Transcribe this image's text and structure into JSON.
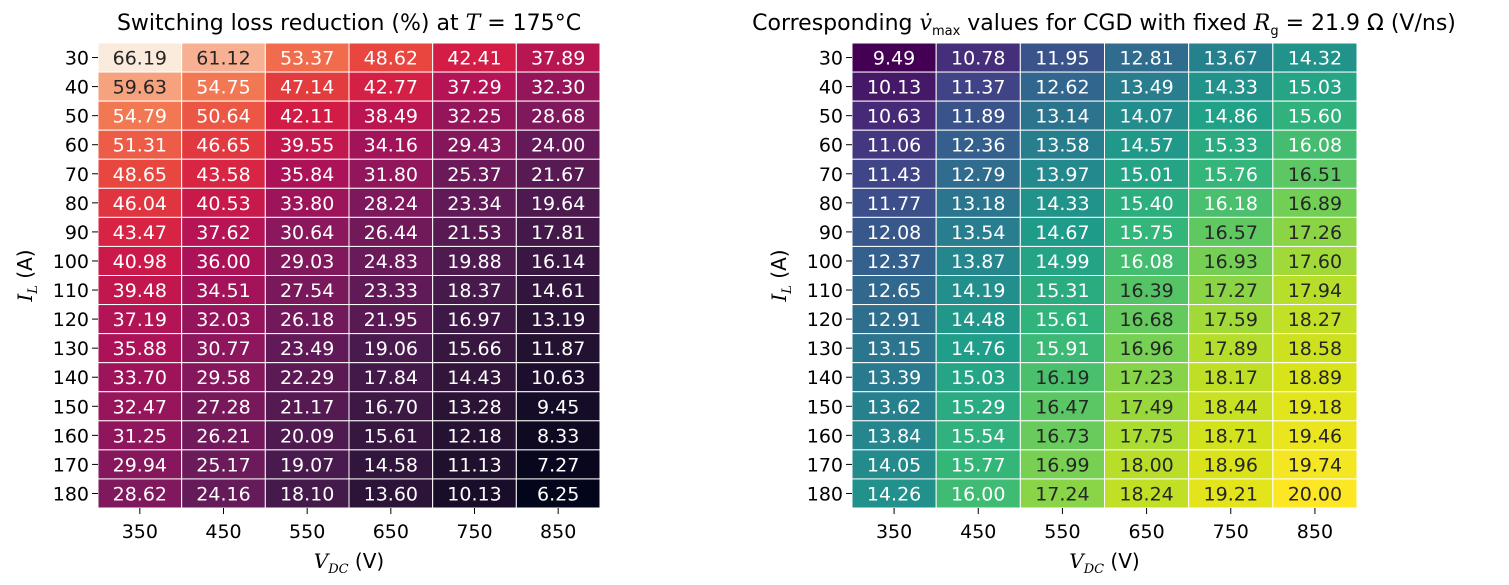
{
  "chart_data": [
    {
      "type": "heatmap",
      "title": "Switching loss reduction (%) at T = 175°C",
      "title_parts": {
        "prefix": "Switching loss reduction (%) at ",
        "var": "T",
        "eq": " = 175",
        "suffix": "°C"
      },
      "xlabel": "V_DC (V)",
      "xlabel_parts": {
        "var": "V",
        "sub": "DC",
        "unit": " (V)"
      },
      "ylabel": "I_L (A)",
      "ylabel_parts": {
        "var": "I",
        "sub": "L",
        "unit": " (A)"
      },
      "x_categories": [
        "350",
        "450",
        "550",
        "650",
        "750",
        "850"
      ],
      "y_categories": [
        "30",
        "40",
        "50",
        "60",
        "70",
        "80",
        "90",
        "100",
        "110",
        "120",
        "130",
        "140",
        "150",
        "160",
        "170",
        "180"
      ],
      "colormap": "rocket",
      "vmin": 6.25,
      "vmax": 66.19,
      "values": [
        [
          66.19,
          61.12,
          53.37,
          48.62,
          42.41,
          37.89
        ],
        [
          59.63,
          54.75,
          47.14,
          42.77,
          37.29,
          32.3
        ],
        [
          54.79,
          50.64,
          42.11,
          38.49,
          32.25,
          28.68
        ],
        [
          51.31,
          46.65,
          39.55,
          34.16,
          29.43,
          24.0
        ],
        [
          48.65,
          43.58,
          35.84,
          31.8,
          25.37,
          21.67
        ],
        [
          46.04,
          40.53,
          33.8,
          28.24,
          23.34,
          19.64
        ],
        [
          43.47,
          37.62,
          30.64,
          26.44,
          21.53,
          17.81
        ],
        [
          40.98,
          36.0,
          29.03,
          24.83,
          19.88,
          16.14
        ],
        [
          39.48,
          34.51,
          27.54,
          23.33,
          18.37,
          14.61
        ],
        [
          37.19,
          32.03,
          26.18,
          21.95,
          16.97,
          13.19
        ],
        [
          35.88,
          30.77,
          23.49,
          19.06,
          15.66,
          11.87
        ],
        [
          33.7,
          29.58,
          22.29,
          17.84,
          14.43,
          10.63
        ],
        [
          32.47,
          27.28,
          21.17,
          16.7,
          13.28,
          9.45
        ],
        [
          31.25,
          26.21,
          20.09,
          15.61,
          12.18,
          8.33
        ],
        [
          29.94,
          25.17,
          19.07,
          14.58,
          11.13,
          7.27
        ],
        [
          28.62,
          24.16,
          18.1,
          13.6,
          10.13,
          6.25
        ]
      ]
    },
    {
      "type": "heatmap",
      "title": "Corresponding v̇_max values for CGD with fixed R_g = 21.9 Ω (V/ns)",
      "title_parts": {
        "prefix": "Corresponding ",
        "var": "v̇",
        "var_sub": "max",
        "mid": " values for CGD with fixed ",
        "var2": "R",
        "var2_sub": "g",
        "eq": " = 21.9",
        "suffix": " Ω (V/ns)"
      },
      "xlabel": "V_DC (V)",
      "xlabel_parts": {
        "var": "V",
        "sub": "DC",
        "unit": " (V)"
      },
      "ylabel": "I_L (A)",
      "ylabel_parts": {
        "var": "I",
        "sub": "L",
        "unit": " (A)"
      },
      "x_categories": [
        "350",
        "450",
        "550",
        "650",
        "750",
        "850"
      ],
      "y_categories": [
        "30",
        "40",
        "50",
        "60",
        "70",
        "80",
        "90",
        "100",
        "110",
        "120",
        "130",
        "140",
        "150",
        "160",
        "170",
        "180"
      ],
      "colormap": "viridis",
      "vmin": 9.49,
      "vmax": 20.0,
      "values": [
        [
          9.49,
          10.78,
          11.95,
          12.81,
          13.67,
          14.32
        ],
        [
          10.13,
          11.37,
          12.62,
          13.49,
          14.33,
          15.03
        ],
        [
          10.63,
          11.89,
          13.14,
          14.07,
          14.86,
          15.6
        ],
        [
          11.06,
          12.36,
          13.58,
          14.57,
          15.33,
          16.08
        ],
        [
          11.43,
          12.79,
          13.97,
          15.01,
          15.76,
          16.51
        ],
        [
          11.77,
          13.18,
          14.33,
          15.4,
          16.18,
          16.89
        ],
        [
          12.08,
          13.54,
          14.67,
          15.75,
          16.57,
          17.26
        ],
        [
          12.37,
          13.87,
          14.99,
          16.08,
          16.93,
          17.6
        ],
        [
          12.65,
          14.19,
          15.31,
          16.39,
          17.27,
          17.94
        ],
        [
          12.91,
          14.48,
          15.61,
          16.68,
          17.59,
          18.27
        ],
        [
          13.15,
          14.76,
          15.91,
          16.96,
          17.89,
          18.58
        ],
        [
          13.39,
          15.03,
          16.19,
          17.23,
          18.17,
          18.89
        ],
        [
          13.62,
          15.29,
          16.47,
          17.49,
          18.44,
          19.18
        ],
        [
          13.84,
          15.54,
          16.73,
          17.75,
          18.71,
          19.46
        ],
        [
          14.05,
          15.77,
          16.99,
          18.0,
          18.96,
          19.74
        ],
        [
          14.26,
          16.0,
          17.24,
          18.24,
          19.21,
          20.0
        ]
      ]
    }
  ]
}
